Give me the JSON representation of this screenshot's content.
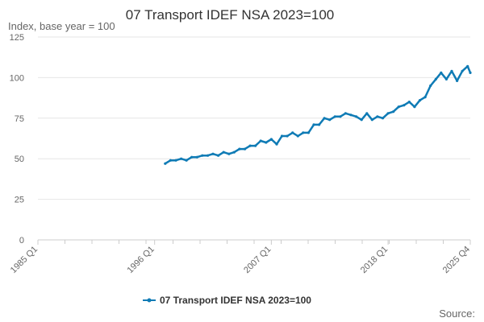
{
  "chart_data": {
    "type": "line",
    "title": "07 Transport IDEF NSA 2023=100",
    "ylabel": "Index, base year = 100",
    "xlabel": "",
    "ylim": [
      0,
      125
    ],
    "y_ticks": [
      "0",
      "25",
      "50",
      "75",
      "100",
      "125"
    ],
    "x_ticks": [
      "1985 Q1",
      "1996 Q1",
      "2007 Q1",
      "2018 Q1",
      "2025 Q4"
    ],
    "x_range": [
      "1985 Q1",
      "2025 Q4"
    ],
    "legend": "bottom-center",
    "grid": "horizontal",
    "colors": {
      "series": "#0f7bb5",
      "grid": "#e6e6e6",
      "axis": "#cccccc"
    },
    "series": [
      {
        "name": "07 Transport IDEF NSA 2023=100",
        "x": [
          "1997 Q1",
          "1997 Q3",
          "1998 Q1",
          "1998 Q3",
          "1999 Q1",
          "1999 Q3",
          "2000 Q1",
          "2000 Q3",
          "2001 Q1",
          "2001 Q3",
          "2002 Q1",
          "2002 Q3",
          "2003 Q1",
          "2003 Q3",
          "2004 Q1",
          "2004 Q3",
          "2005 Q1",
          "2005 Q3",
          "2006 Q1",
          "2006 Q3",
          "2007 Q1",
          "2007 Q3",
          "2008 Q1",
          "2008 Q3",
          "2009 Q1",
          "2009 Q3",
          "2010 Q1",
          "2010 Q3",
          "2011 Q1",
          "2011 Q3",
          "2012 Q1",
          "2012 Q3",
          "2013 Q1",
          "2013 Q3",
          "2014 Q1",
          "2014 Q3",
          "2015 Q1",
          "2015 Q3",
          "2016 Q1",
          "2016 Q3",
          "2017 Q1",
          "2017 Q3",
          "2018 Q1",
          "2018 Q3",
          "2019 Q1",
          "2019 Q3",
          "2020 Q1",
          "2020 Q3",
          "2021 Q1",
          "2021 Q3",
          "2022 Q1",
          "2022 Q3",
          "2023 Q1",
          "2023 Q3",
          "2024 Q1",
          "2024 Q3",
          "2025 Q1",
          "2025 Q3",
          "2025 Q4"
        ],
        "values": [
          47,
          49,
          49,
          50,
          49,
          51,
          51,
          52,
          52,
          53,
          52,
          54,
          53,
          54,
          56,
          56,
          58,
          58,
          61,
          60,
          62,
          59,
          64,
          64,
          66,
          64,
          66,
          66,
          71,
          71,
          75,
          74,
          76,
          76,
          78,
          77,
          76,
          74,
          78,
          74,
          76,
          75,
          78,
          79,
          82,
          83,
          85,
          82,
          86,
          88,
          95,
          99,
          103,
          99,
          104,
          98,
          104,
          107,
          103
        ]
      }
    ],
    "source": "Source:"
  }
}
